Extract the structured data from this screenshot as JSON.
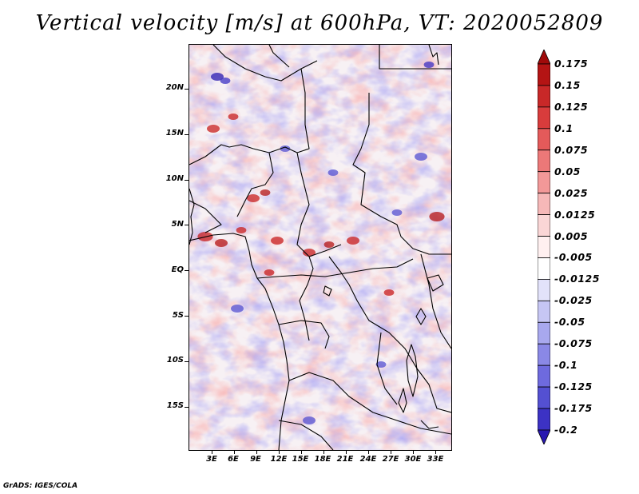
{
  "title": "Vertical velocity [m/s] at 600hPa, VT: 2020052809",
  "credit": "GrADS: IGES/COLA",
  "map": {
    "lat_labels": [
      "20N",
      "15N",
      "10N",
      "5N",
      "EQ",
      "5S",
      "10S",
      "15S"
    ],
    "lon_labels": [
      "3E",
      "6E",
      "9E",
      "12E",
      "15E",
      "18E",
      "21E",
      "24E",
      "27E",
      "30E",
      "33E"
    ],
    "field": "vertical velocity",
    "colors": {
      "ascent": "#c81e1e",
      "descent": "#3c32c8",
      "neutral": "#ffffff"
    }
  },
  "colorbar": {
    "labels": [
      "0.175",
      "0.15",
      "0.125",
      "0.1",
      "0.075",
      "0.05",
      "0.025",
      "0.0125",
      "0.005",
      "-0.005",
      "-0.0125",
      "-0.025",
      "-0.05",
      "-0.075",
      "-0.1",
      "-0.125",
      "-0.175",
      "-0.2"
    ],
    "colors": [
      "#a00a0a",
      "#b41414",
      "#c82828",
      "#d83c3c",
      "#e45a5a",
      "#ec7878",
      "#f29898",
      "#f6b8b8",
      "#fad6d6",
      "#fff0f0",
      "#ffffff",
      "#e2e2fa",
      "#c6c6f4",
      "#a8a8ee",
      "#8a88e6",
      "#6e6ade",
      "#5450d2",
      "#3c32c4",
      "#2818b0"
    ]
  }
}
